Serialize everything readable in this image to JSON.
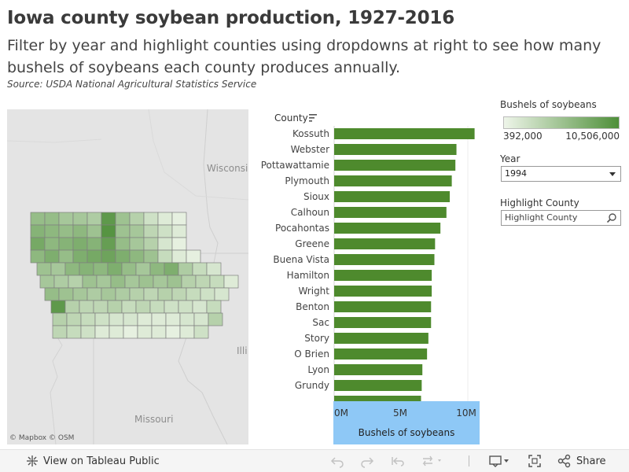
{
  "header": {
    "title": "Iowa county soybean production, 1927-2016",
    "subtitle": "Filter by year and highlight counties using dropdowns at right to see how many bushels of soybeans each county produces annually.",
    "source": "Source: USDA National Agricultural Statistics Service"
  },
  "map": {
    "attribution_mapbox": "© Mapbox",
    "attribution_osm": "© OSM",
    "labels": {
      "wisconsin": "Wisconsin",
      "illinois": "Illi",
      "missouri": "Missouri"
    },
    "colors": {
      "background": "#e4e4e4",
      "low": "#eef5e9",
      "high": "#4e8f39"
    }
  },
  "chart_header": {
    "county_label": "County"
  },
  "chart_data": {
    "type": "bar",
    "orientation": "horizontal",
    "categories": [
      "Kossuth",
      "Webster",
      "Pottawattamie",
      "Plymouth",
      "Sioux",
      "Calhoun",
      "Pocahontas",
      "Greene",
      "Buena Vista",
      "Hamilton",
      "Wright",
      "Benton",
      "Sac",
      "Story",
      "O Brien",
      "Lyon",
      "Grundy"
    ],
    "values": [
      10506000,
      9150000,
      9070000,
      8800000,
      8650000,
      8400000,
      7950000,
      7550000,
      7500000,
      7300000,
      7300000,
      7250000,
      7250000,
      7050000,
      6950000,
      6600000,
      6550000
    ],
    "xlabel": "Bushels of soybeans",
    "ylabel": "County",
    "xlim": [
      0,
      11000000
    ],
    "x_ticks": [
      "0M",
      "5M",
      "10M"
    ],
    "bar_color": "#4e8a2d",
    "grid": false
  },
  "legend": {
    "title": "Bushels of soybeans",
    "min": "392,000",
    "max": "10,506,000"
  },
  "filters": {
    "year_label": "Year",
    "year_value": "1994",
    "highlight_label": "Highlight County",
    "highlight_placeholder": "Highlight County"
  },
  "footer": {
    "view_label": "View on Tableau Public",
    "share_label": "Share"
  }
}
